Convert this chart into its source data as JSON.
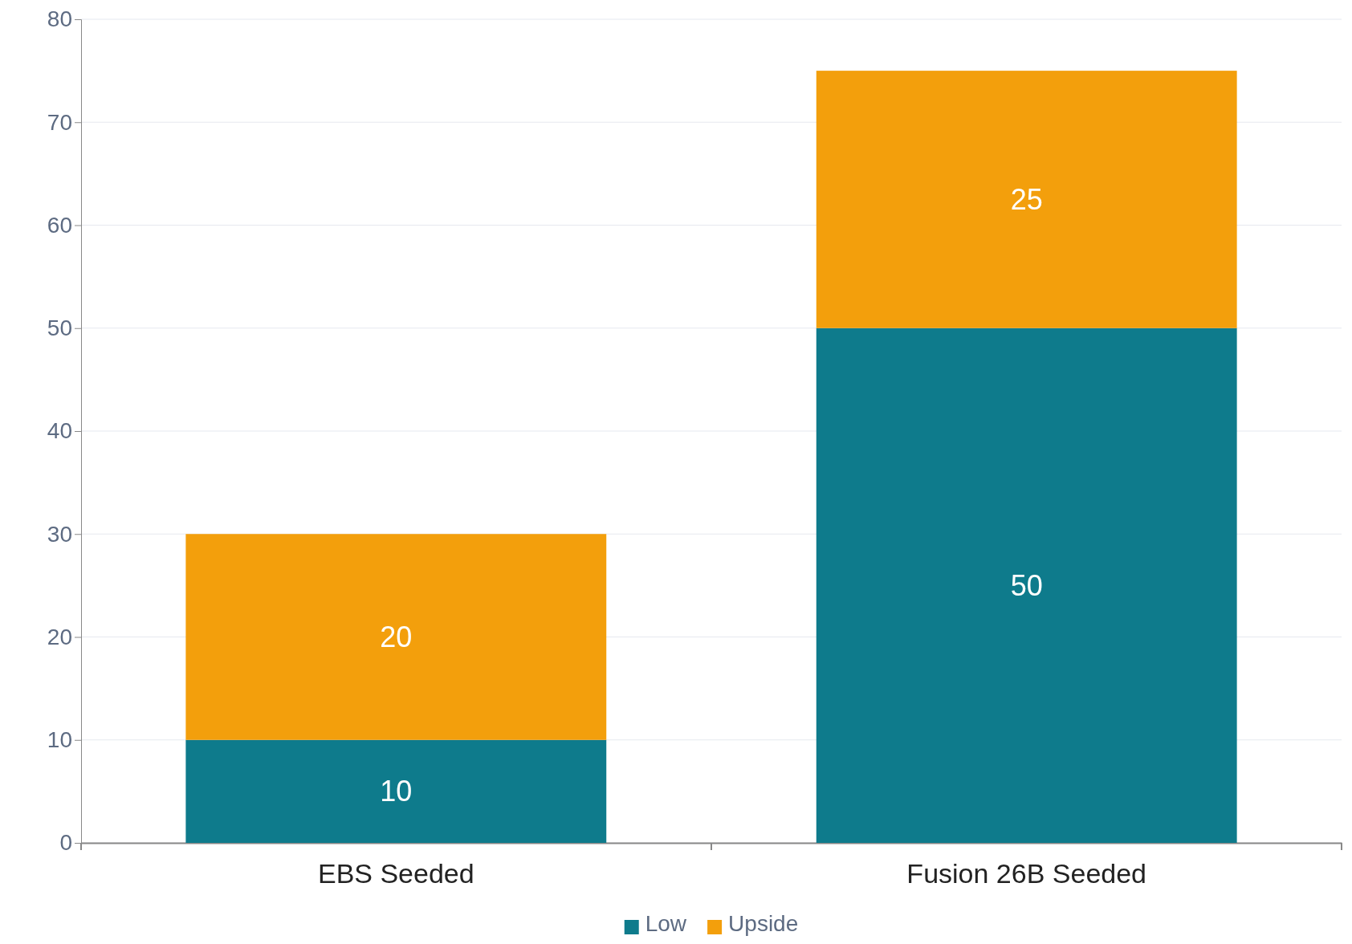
{
  "chart_data": {
    "type": "bar",
    "stacked": true,
    "categories": [
      "EBS Seeded",
      "Fusion 26B Seeded"
    ],
    "series": [
      {
        "name": "Low",
        "color": "#0e7b8c",
        "values": [
          10,
          50
        ]
      },
      {
        "name": "Upside",
        "color": "#f39f0c",
        "values": [
          20,
          25
        ]
      }
    ],
    "ylim": [
      0,
      80
    ],
    "yticks": [
      0,
      10,
      20,
      30,
      40,
      50,
      60,
      70,
      80
    ],
    "grid": "y",
    "legend": "bottom",
    "data_labels": true
  }
}
